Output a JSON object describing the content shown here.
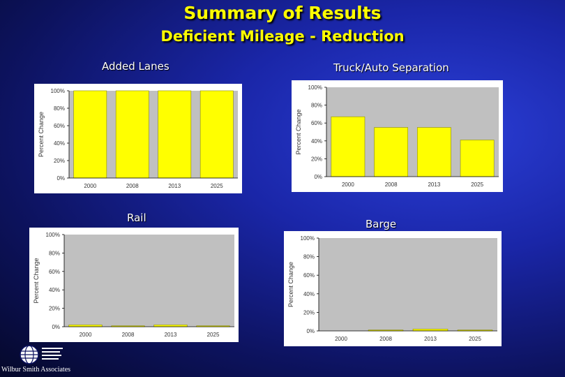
{
  "slide": {
    "title": "Summary of Results",
    "subtitle": "Deficient Mileage - Reduction"
  },
  "logo": {
    "name": "Wilbur Smith Associates"
  },
  "colors": {
    "bar_fill": "#ffff00",
    "bar_stroke": "#8c8c00",
    "plot_bg": "#c0c0c0"
  },
  "chart_data": [
    {
      "type": "bar",
      "title": "Added Lanes",
      "ylabel": "Percent Change",
      "categories": [
        "2000",
        "2008",
        "2013",
        "2025"
      ],
      "values": [
        100,
        100,
        100,
        100
      ],
      "ylim": [
        0,
        100
      ],
      "yticks": [
        "0%",
        "20%",
        "40%",
        "60%",
        "80%",
        "100%"
      ]
    },
    {
      "type": "bar",
      "title": "Truck/Auto Separation",
      "ylabel": "Percent Change",
      "categories": [
        "2000",
        "2008",
        "2013",
        "2025"
      ],
      "values": [
        67,
        55,
        55,
        41
      ],
      "ylim": [
        0,
        100
      ],
      "yticks": [
        "0%",
        "20%",
        "40%",
        "60%",
        "80%",
        "100%"
      ]
    },
    {
      "type": "bar",
      "title": "Rail",
      "ylabel": "Percent Change",
      "categories": [
        "2000",
        "2008",
        "2013",
        "2025"
      ],
      "values": [
        2,
        1,
        2,
        1
      ],
      "ylim": [
        0,
        100
      ],
      "yticks": [
        "0%",
        "20%",
        "40%",
        "60%",
        "80%",
        "100%"
      ]
    },
    {
      "type": "bar",
      "title": "Barge",
      "ylabel": "Percent Change",
      "categories": [
        "2000",
        "2008",
        "2013",
        "2025"
      ],
      "values": [
        0,
        1,
        2,
        1
      ],
      "ylim": [
        0,
        100
      ],
      "yticks": [
        "0%",
        "20%",
        "40%",
        "60%",
        "80%",
        "100%"
      ]
    }
  ]
}
